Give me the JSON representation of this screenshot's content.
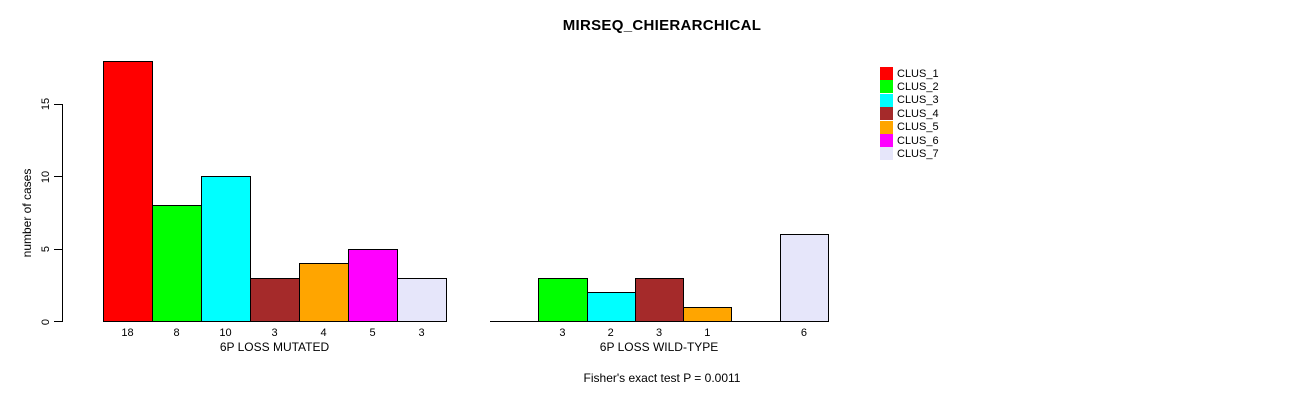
{
  "title": "MIRSEQ_CHIERARCHICAL",
  "chart_data": {
    "type": "bar",
    "title": "MIRSEQ_CHIERARCHICAL",
    "ylabel": "number of cases",
    "xlabel": "",
    "ylim": [
      0,
      18
    ],
    "yticks": [
      0,
      5,
      10,
      15
    ],
    "grid": false,
    "legend_position": "right",
    "legend": [
      {
        "label": "CLUS_1",
        "color": "#FF0000"
      },
      {
        "label": "CLUS_2",
        "color": "#00FF00"
      },
      {
        "label": "CLUS_3",
        "color": "#00FFFF"
      },
      {
        "label": "CLUS_4",
        "color": "#A52A2A"
      },
      {
        "label": "CLUS_5",
        "color": "#FFA500"
      },
      {
        "label": "CLUS_6",
        "color": "#FF00FF"
      },
      {
        "label": "CLUS_7",
        "color": "#E6E6FA"
      }
    ],
    "categories": [
      "CLUS_1",
      "CLUS_2",
      "CLUS_3",
      "CLUS_4",
      "CLUS_5",
      "CLUS_6",
      "CLUS_7"
    ],
    "groups": [
      {
        "label": "6P LOSS MUTATED",
        "values": [
          18,
          8,
          10,
          3,
          4,
          5,
          3
        ]
      },
      {
        "label": "6P LOSS WILD-TYPE",
        "values": [
          0,
          3,
          2,
          3,
          1,
          0,
          6
        ]
      }
    ],
    "annotation": "Fisher's exact test P = 0.0011"
  }
}
